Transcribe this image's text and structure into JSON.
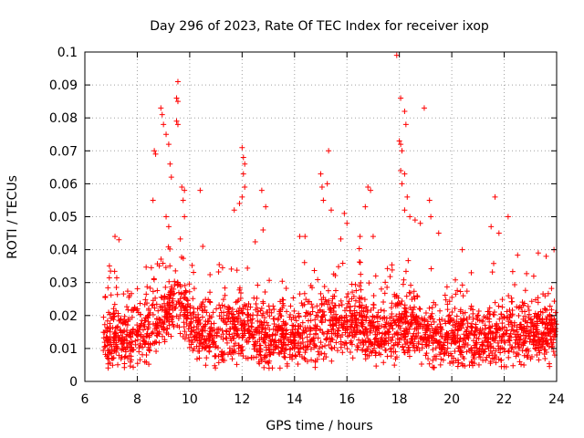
{
  "chart_data": {
    "type": "scatter",
    "title": "Day 296 of 2023, Rate Of TEC Index for receiver ixop",
    "xlabel": "GPS time / hours",
    "ylabel": "ROTI / TECUs",
    "xlim": [
      6,
      24
    ],
    "ylim": [
      0,
      0.1
    ],
    "xticks": [
      6,
      8,
      10,
      12,
      14,
      16,
      18,
      20,
      22,
      24
    ],
    "yticks": [
      0,
      0.01,
      0.02,
      0.03,
      0.04,
      0.05,
      0.06,
      0.07,
      0.08,
      0.09,
      0.1
    ],
    "xtick_labels": [
      "6",
      "8",
      "10",
      "12",
      "14",
      "16",
      "18",
      "20",
      "22",
      "24"
    ],
    "ytick_labels": [
      "0",
      "0.01",
      "0.02",
      "0.03",
      "0.04",
      "0.05",
      "0.06",
      "0.07",
      "0.08",
      "0.09",
      "0.1"
    ],
    "grid": true,
    "marker": "+",
    "series_color": "#ff0000",
    "data_start_hour": 6.7,
    "data_end_hour": 24,
    "typical_range": [
      0.005,
      0.03
    ],
    "notable_points": [
      {
        "x": 7.15,
        "y": 0.044
      },
      {
        "x": 7.3,
        "y": 0.043
      },
      {
        "x": 8.6,
        "y": 0.055
      },
      {
        "x": 8.65,
        "y": 0.07
      },
      {
        "x": 8.7,
        "y": 0.069
      },
      {
        "x": 8.9,
        "y": 0.083
      },
      {
        "x": 8.95,
        "y": 0.081
      },
      {
        "x": 9.0,
        "y": 0.078
      },
      {
        "x": 9.1,
        "y": 0.075
      },
      {
        "x": 9.2,
        "y": 0.072
      },
      {
        "x": 9.25,
        "y": 0.066
      },
      {
        "x": 9.3,
        "y": 0.062
      },
      {
        "x": 9.1,
        "y": 0.05
      },
      {
        "x": 9.2,
        "y": 0.047
      },
      {
        "x": 9.55,
        "y": 0.091
      },
      {
        "x": 9.5,
        "y": 0.086
      },
      {
        "x": 9.55,
        "y": 0.085
      },
      {
        "x": 9.5,
        "y": 0.079
      },
      {
        "x": 9.55,
        "y": 0.078
      },
      {
        "x": 9.7,
        "y": 0.059
      },
      {
        "x": 9.8,
        "y": 0.058
      },
      {
        "x": 9.75,
        "y": 0.055
      },
      {
        "x": 9.8,
        "y": 0.05
      },
      {
        "x": 10.4,
        "y": 0.058
      },
      {
        "x": 10.5,
        "y": 0.041
      },
      {
        "x": 11.7,
        "y": 0.052
      },
      {
        "x": 11.9,
        "y": 0.054
      },
      {
        "x": 12.0,
        "y": 0.071
      },
      {
        "x": 12.05,
        "y": 0.068
      },
      {
        "x": 12.1,
        "y": 0.066
      },
      {
        "x": 12.05,
        "y": 0.063
      },
      {
        "x": 12.1,
        "y": 0.059
      },
      {
        "x": 12.0,
        "y": 0.056
      },
      {
        "x": 12.75,
        "y": 0.058
      },
      {
        "x": 12.9,
        "y": 0.053
      },
      {
        "x": 12.8,
        "y": 0.046
      },
      {
        "x": 14.2,
        "y": 0.044
      },
      {
        "x": 14.4,
        "y": 0.044
      },
      {
        "x": 15.0,
        "y": 0.063
      },
      {
        "x": 15.05,
        "y": 0.059
      },
      {
        "x": 15.1,
        "y": 0.055
      },
      {
        "x": 15.3,
        "y": 0.07
      },
      {
        "x": 15.25,
        "y": 0.06
      },
      {
        "x": 15.4,
        "y": 0.052
      },
      {
        "x": 15.9,
        "y": 0.051
      },
      {
        "x": 16.0,
        "y": 0.048
      },
      {
        "x": 16.8,
        "y": 0.059
      },
      {
        "x": 16.9,
        "y": 0.058
      },
      {
        "x": 16.7,
        "y": 0.053
      },
      {
        "x": 16.5,
        "y": 0.044
      },
      {
        "x": 17.0,
        "y": 0.044
      },
      {
        "x": 17.9,
        "y": 0.099
      },
      {
        "x": 18.05,
        "y": 0.086
      },
      {
        "x": 18.2,
        "y": 0.082
      },
      {
        "x": 18.25,
        "y": 0.078
      },
      {
        "x": 18.0,
        "y": 0.073
      },
      {
        "x": 18.05,
        "y": 0.072
      },
      {
        "x": 18.1,
        "y": 0.07
      },
      {
        "x": 18.05,
        "y": 0.064
      },
      {
        "x": 18.2,
        "y": 0.063
      },
      {
        "x": 18.1,
        "y": 0.06
      },
      {
        "x": 18.3,
        "y": 0.056
      },
      {
        "x": 18.2,
        "y": 0.052
      },
      {
        "x": 18.4,
        "y": 0.05
      },
      {
        "x": 18.6,
        "y": 0.049
      },
      {
        "x": 18.8,
        "y": 0.048
      },
      {
        "x": 18.95,
        "y": 0.083
      },
      {
        "x": 19.15,
        "y": 0.055
      },
      {
        "x": 19.2,
        "y": 0.05
      },
      {
        "x": 19.5,
        "y": 0.045
      },
      {
        "x": 20.4,
        "y": 0.04
      },
      {
        "x": 21.5,
        "y": 0.047
      },
      {
        "x": 21.65,
        "y": 0.056
      },
      {
        "x": 21.8,
        "y": 0.045
      },
      {
        "x": 22.15,
        "y": 0.05
      },
      {
        "x": 23.3,
        "y": 0.039
      },
      {
        "x": 23.6,
        "y": 0.038
      },
      {
        "x": 23.9,
        "y": 0.04
      }
    ]
  }
}
